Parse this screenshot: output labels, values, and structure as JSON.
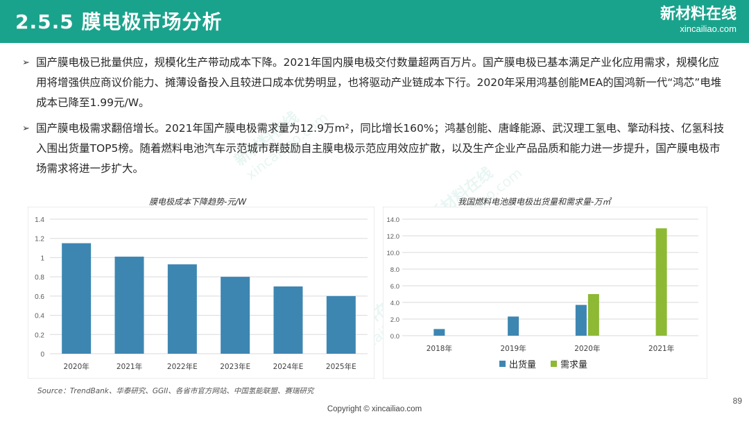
{
  "header": {
    "title": "2.5.5 膜电极市场分析",
    "brand_name": "新材料在线",
    "brand_domain": "xincailiao.com",
    "background_color": "#1aa38c"
  },
  "bullets": [
    {
      "marker": "➢",
      "text": "国产膜电极已批量供应，规模化生产带动成本下降。2021年国内膜电极交付数量超两百万片。国产膜电极已基本满足产业化应用需求，规模化应用将增强供应商议价能力、摊薄设备投入且较进口成本优势明显，也将驱动产业链成本下行。2020年采用鸿基创能MEA的国鸿新一代“鸿芯”电堆成本已降至1.99元/W。"
    },
    {
      "marker": "➢",
      "text": "国产膜电极需求翻倍增长。2021年国产膜电极需求量为12.9万m²，同比增长160%；鸿基创能、唐峰能源、武汉理工氢电、擎动科技、亿氢科技入围出货量TOP5榜。随着燃料电池汽车示范城市群鼓励自主膜电极示范应用效应扩散，以及生产企业产品品质和能力进一步提升，国产膜电极市场需求将进一步扩大。"
    }
  ],
  "chart_data": [
    {
      "type": "bar",
      "title": "膜电极成本下降趋势-元/W",
      "xlabel": "",
      "ylabel": "",
      "categories": [
        "2020年",
        "2021年",
        "2022年E",
        "2023年E",
        "2024年E",
        "2025年E"
      ],
      "values": [
        1.15,
        1.01,
        0.93,
        0.8,
        0.7,
        0.6
      ],
      "ylim": [
        0,
        1.4
      ],
      "yticks": [
        "0",
        "0.2",
        "0.4",
        "0.6",
        "0.8",
        "1",
        "1.2",
        "1.4"
      ],
      "grid": true,
      "legend": "none",
      "colors": [
        "#3d86b2"
      ]
    },
    {
      "type": "bar",
      "title": "我国燃料电池膜电极出货量和需求量-万㎡",
      "xlabel": "",
      "ylabel": "",
      "categories": [
        "2018年",
        "2019年",
        "2020年",
        "2021年"
      ],
      "series": [
        {
          "name": "出货量",
          "values": [
            0.8,
            2.3,
            3.7,
            null
          ]
        },
        {
          "name": "需求量",
          "values": [
            null,
            null,
            5.0,
            12.9
          ]
        }
      ],
      "ylim": [
        0,
        14
      ],
      "yticks": [
        "0.0",
        "2.0",
        "4.0",
        "6.0",
        "8.0",
        "10.0",
        "12.0",
        "14.0"
      ],
      "grid": true,
      "legend": "bottom",
      "colors": [
        "#3d86b2",
        "#8db934"
      ]
    }
  ],
  "footer": {
    "source": "Source：TrendBank、华泰研究、GGII、各省市官方网站、中国氢能联盟、赛瑞研究",
    "copyright": "Copyright © xincailiao.com",
    "page_number": "89"
  },
  "watermark": {
    "name": "新材料在线",
    "domain": "xincailiao.com"
  }
}
